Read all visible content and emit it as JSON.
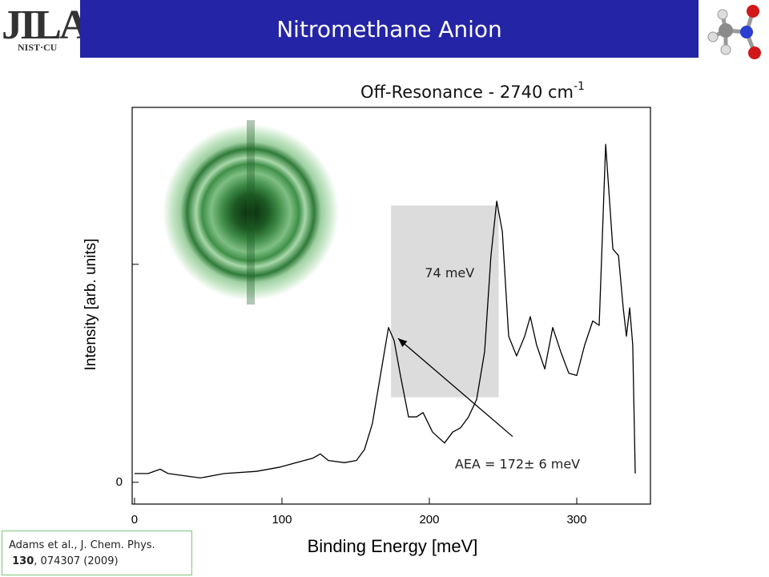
{
  "header": {
    "title": "Nitromethane Anion",
    "logo": "JILA",
    "logo_sub": "NIST·CU"
  },
  "citation": {
    "line1": "Adams et al., J. Chem. Phys.",
    "volume": "130",
    "rest": ", 074307 (2009)"
  },
  "chart_data": {
    "type": "line",
    "title": "Off-Resonance  - 2740 cm",
    "title_sup": "-1",
    "xlabel": "Binding Energy [meV]",
    "ylabel": "Intensity [arb. units]",
    "x": [
      0,
      9.2,
      17.4,
      22.8,
      33.7,
      44.6,
      60.9,
      82.6,
      98.9,
      109.8,
      120.7,
      126,
      131.5,
      142.4,
      150.5,
      156,
      161.4,
      166.8,
      172.3,
      176.1,
      180.4,
      185.9,
      191.3,
      195.7,
      202.2,
      210.3,
      215.8,
      221.2,
      226.6,
      232.1,
      237.5,
      241.8,
      245.7,
      249.5,
      253.8,
      259.2,
      264.7,
      268.5,
      272.8,
      278.3,
      283.7,
      289.1,
      294.6,
      300,
      305.4,
      310.9,
      315.2,
      319.6,
      324.5,
      328.3,
      331.5,
      333.7,
      335.9,
      338,
      339.7
    ],
    "values": [
      0.04,
      0.04,
      0.06,
      0.04,
      0.03,
      0.02,
      0.04,
      0.05,
      0.07,
      0.09,
      0.11,
      0.13,
      0.1,
      0.09,
      0.1,
      0.15,
      0.27,
      0.49,
      0.71,
      0.65,
      0.49,
      0.3,
      0.3,
      0.32,
      0.23,
      0.18,
      0.23,
      0.25,
      0.3,
      0.38,
      0.6,
      1.04,
      1.29,
      1.15,
      0.67,
      0.58,
      0.67,
      0.76,
      0.63,
      0.52,
      0.71,
      0.6,
      0.5,
      0.49,
      0.63,
      0.74,
      0.72,
      1.55,
      1.07,
      1.04,
      0.8,
      0.67,
      0.8,
      0.63,
      0.04
    ],
    "color": "#000000",
    "xlim": [
      -1.6,
      350
    ],
    "ylim": [
      -0.1,
      1.72
    ],
    "xticks": [
      0,
      100,
      200,
      300
    ],
    "yticks": [
      0,
      {
        "value": 1,
        "label": null
      }
    ],
    "band": {
      "x0": 174,
      "x1": 247,
      "y0": 0.39,
      "y1": 1.27,
      "label": "74 meV",
      "color": "#dcdcdc"
    },
    "arrow": {
      "x0": 256.5,
      "y0": 0.21,
      "x1": 178.8,
      "y1": 0.66,
      "label": "AEA = 172± 6 meV"
    }
  }
}
